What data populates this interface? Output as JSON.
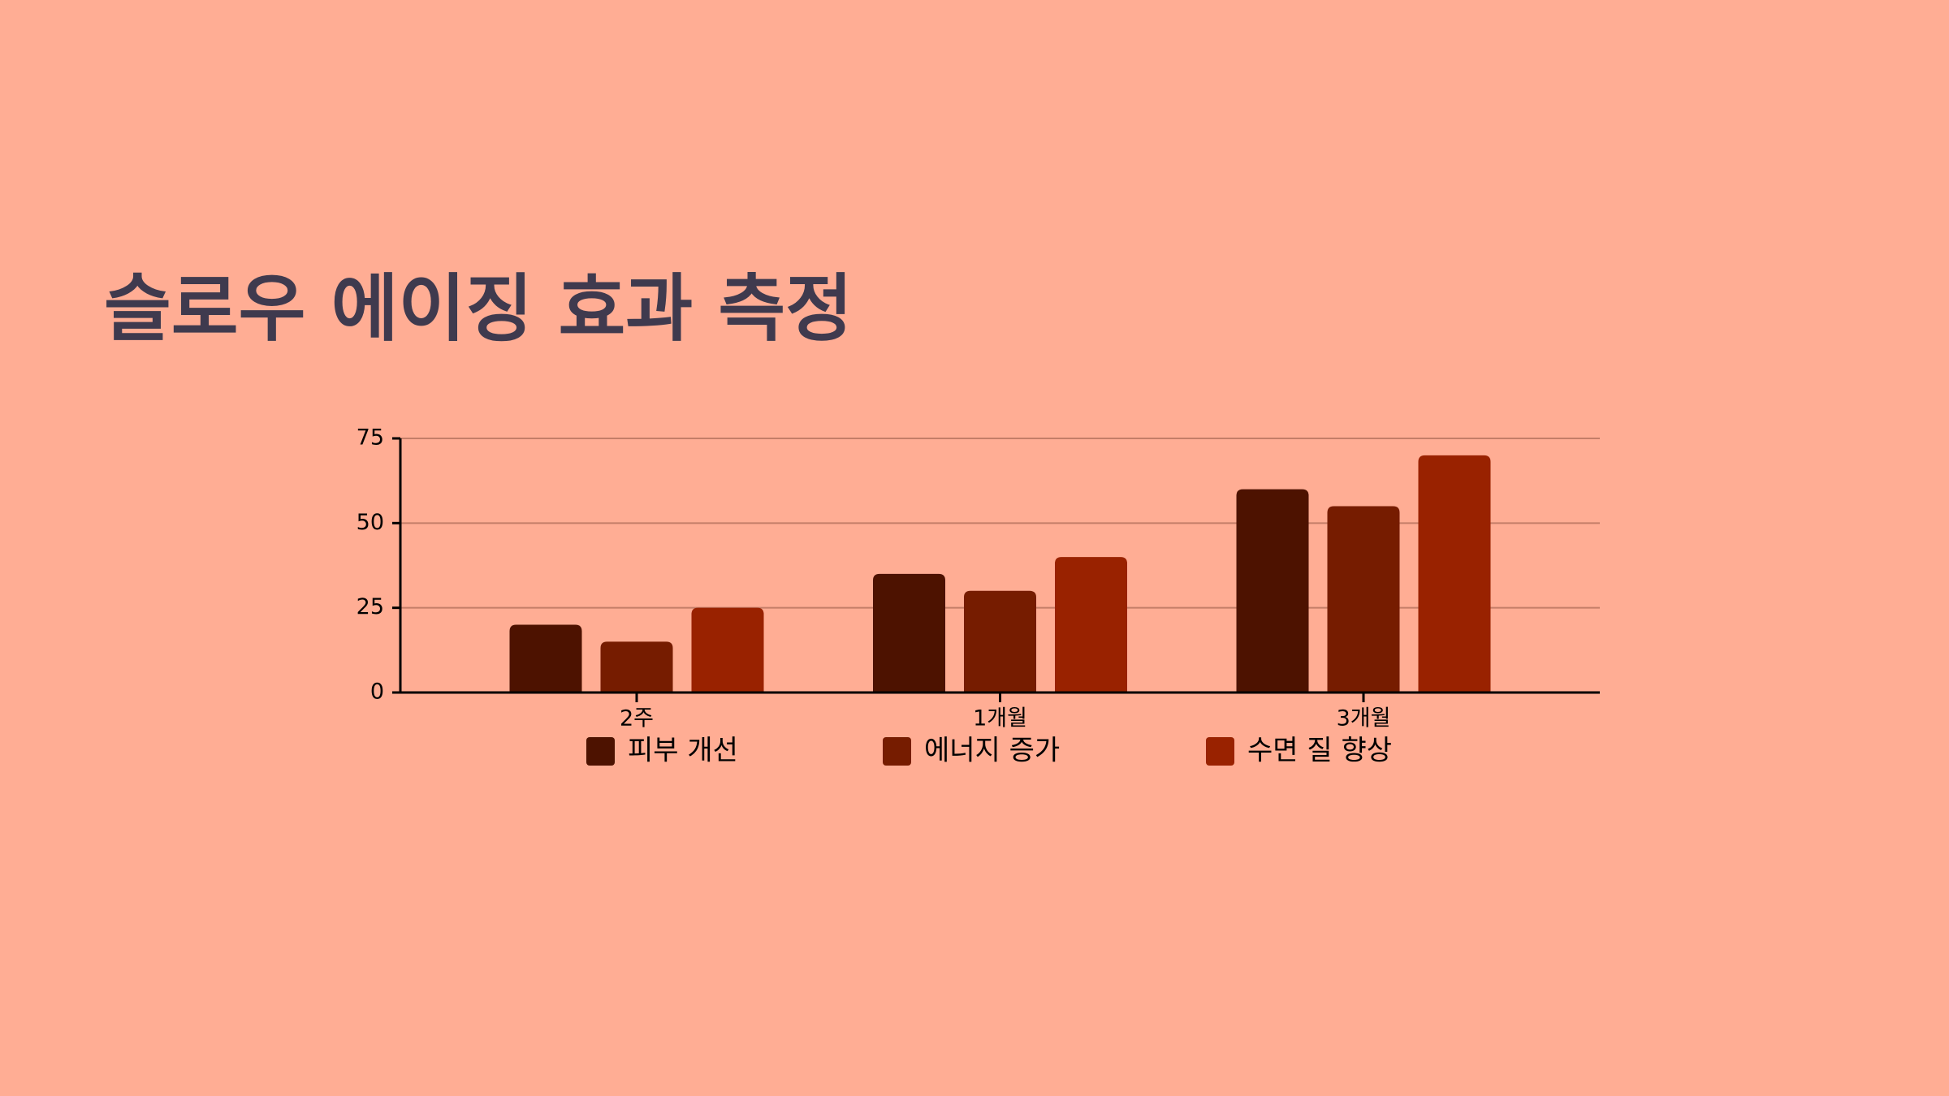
{
  "chart_data": {
    "type": "bar",
    "title": "슬로우 에이징 효과 측정",
    "categories": [
      "2주",
      "1개월",
      "3개월"
    ],
    "series": [
      {
        "name": "피부 개선",
        "color": "#4d1200",
        "values": [
          20,
          35,
          60
        ]
      },
      {
        "name": "에너지 증가",
        "color": "#761c00",
        "values": [
          15,
          30,
          55
        ]
      },
      {
        "name": "수면 질 향상",
        "color": "#992200",
        "values": [
          25,
          40,
          70
        ]
      }
    ],
    "ylim": [
      0,
      75
    ],
    "yticks": [
      0,
      25,
      50,
      75
    ],
    "grid": true,
    "legend": "bottom"
  }
}
